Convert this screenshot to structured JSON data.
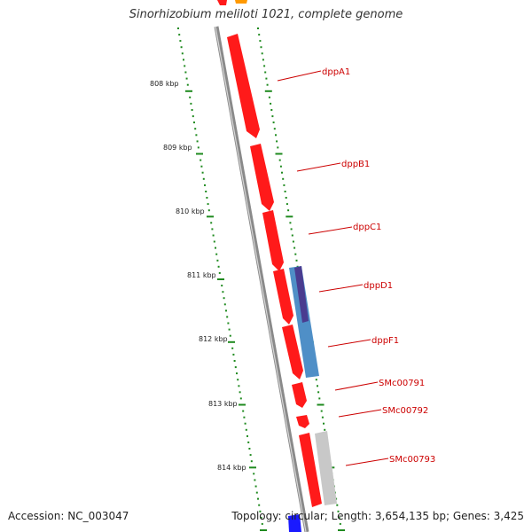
{
  "title": "Sinorhizobium meliloti 1021, complete genome",
  "accession": "Accession: NC_003047",
  "summary": "Topology: circular; Length: 3,654,135 bp; Genes: 3,425",
  "colors": {
    "backbone": "#8a8a8a",
    "cds": "#ff1a1a",
    "scale_ticks": "#1f8a1f",
    "gene_label": "#cc0000",
    "feature_blue": "#4f8fc7",
    "feature_purple": "#4a3c90",
    "feature_gray": "#c8c8c8",
    "feature_orange": "#ff9900",
    "feature_darkblue": "#1a1aff"
  },
  "scale_labels": [
    {
      "kbp": 808,
      "label": "808 kbp"
    },
    {
      "kbp": 809,
      "label": "809 kbp"
    },
    {
      "kbp": 810,
      "label": "810 kbp"
    },
    {
      "kbp": 811,
      "label": "811 kbp"
    },
    {
      "kbp": 812,
      "label": "812 kbp"
    },
    {
      "kbp": 813,
      "label": "813 kbp"
    },
    {
      "kbp": 814,
      "label": "814 kbp"
    }
  ],
  "genes": [
    {
      "name": "dppA1"
    },
    {
      "name": "dppB1"
    },
    {
      "name": "dppC1"
    },
    {
      "name": "dppD1"
    },
    {
      "name": "dppF1"
    },
    {
      "name": "SMc00791"
    },
    {
      "name": "SMc00792"
    },
    {
      "name": "SMc00793"
    }
  ]
}
